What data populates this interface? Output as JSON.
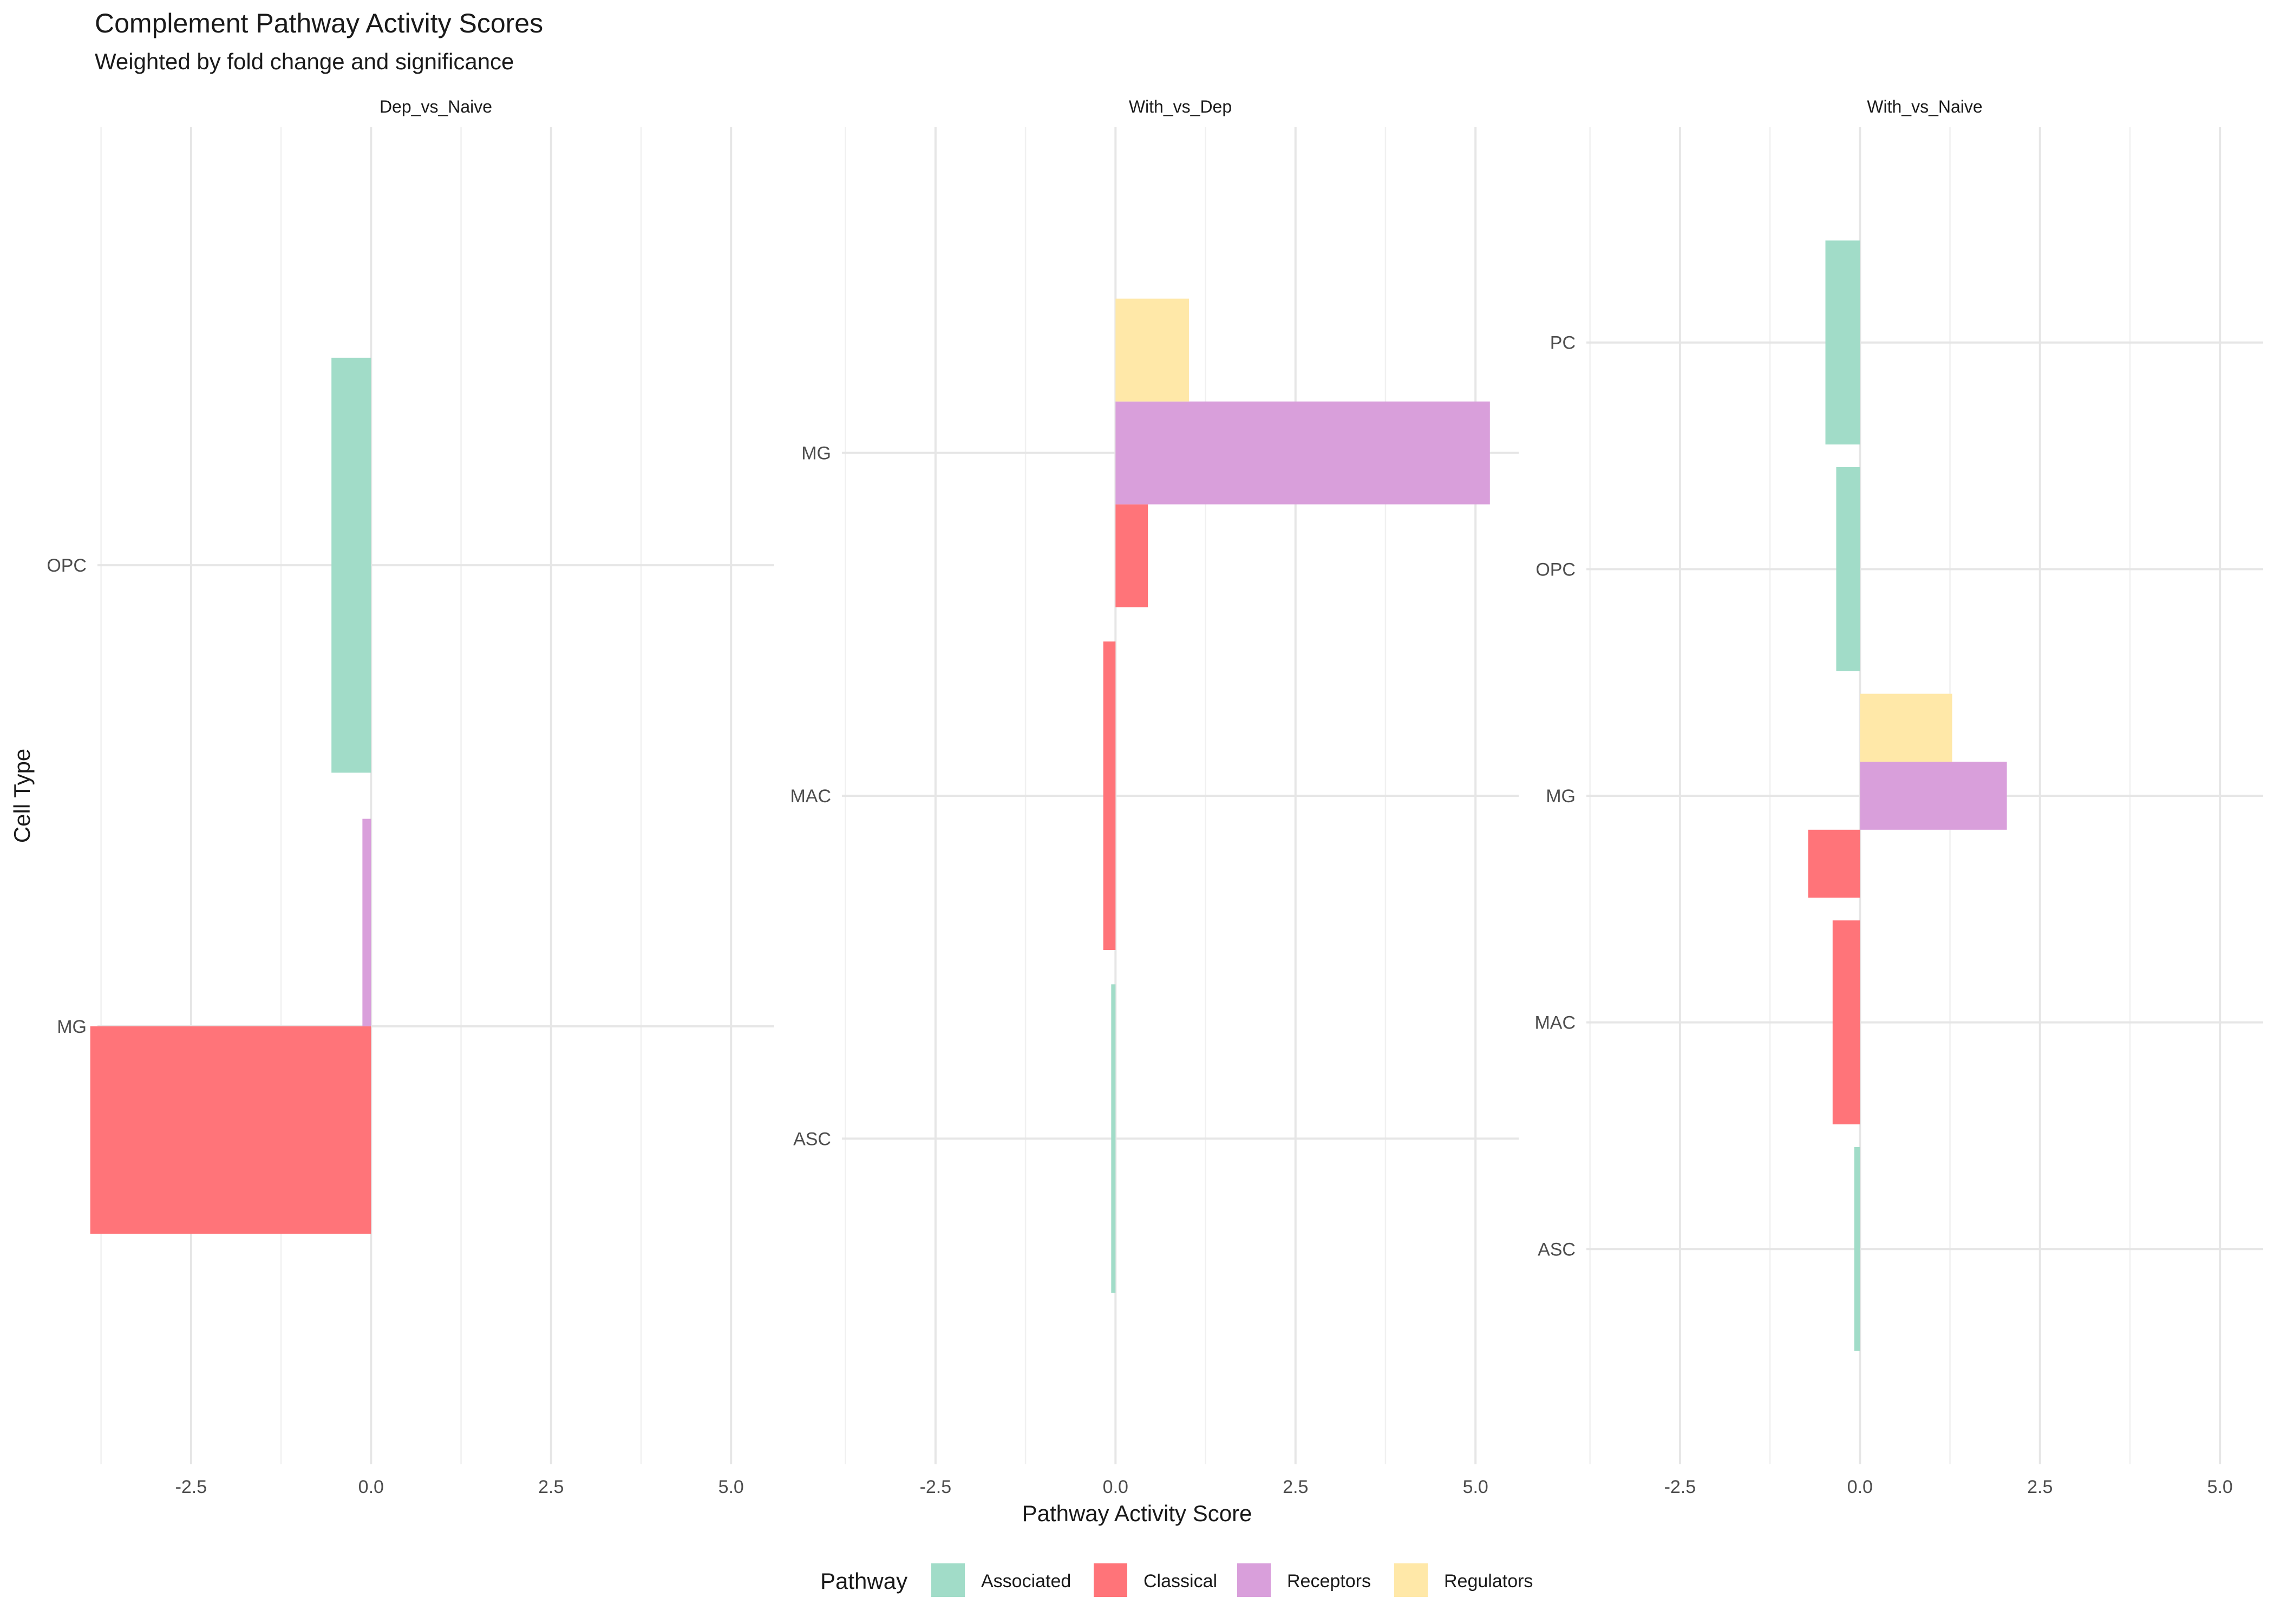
{
  "chart_data": {
    "type": "bar",
    "orientation": "horizontal",
    "title": "Complement Pathway Activity Scores",
    "subtitle": "Weighted by fold change and significance",
    "xlabel": "Pathway Activity Score",
    "ylabel": "Cell Type",
    "xlim": [
      -3.8,
      5.6
    ],
    "x_ticks": [
      -2.5,
      0,
      2.5,
      5
    ],
    "x_tick_labels": [
      "-2.5",
      "0.0",
      "2.5",
      "5.0"
    ],
    "grid": true,
    "legend": {
      "title": "Pathway",
      "placement": "bottom",
      "entries": [
        "Associated",
        "Classical",
        "Receptors",
        "Regulators"
      ]
    },
    "colors": {
      "Associated": "#a1dcc8",
      "Classical": "#ff7479",
      "Receptors": "#d99fdb",
      "Regulators": "#ffe8a8"
    },
    "panels": [
      {
        "name": "Dep_vs_Naive",
        "categories": [
          "MG",
          "OPC"
        ],
        "bars": [
          {
            "category": "MG",
            "pathway": "Classical",
            "value": -3.9
          },
          {
            "category": "MG",
            "pathway": "Receptors",
            "value": -0.12
          },
          {
            "category": "OPC",
            "pathway": "Associated",
            "value": -0.55
          }
        ]
      },
      {
        "name": "With_vs_Dep",
        "categories": [
          "ASC",
          "MAC",
          "MG"
        ],
        "bars": [
          {
            "category": "ASC",
            "pathway": "Associated",
            "value": -0.06
          },
          {
            "category": "MAC",
            "pathway": "Classical",
            "value": -0.17
          },
          {
            "category": "MG",
            "pathway": "Classical",
            "value": 0.45
          },
          {
            "category": "MG",
            "pathway": "Receptors",
            "value": 5.2
          },
          {
            "category": "MG",
            "pathway": "Regulators",
            "value": 1.02
          }
        ]
      },
      {
        "name": "With_vs_Naive",
        "categories": [
          "ASC",
          "MAC",
          "MG",
          "OPC",
          "PC"
        ],
        "bars": [
          {
            "category": "ASC",
            "pathway": "Associated",
            "value": -0.08
          },
          {
            "category": "MAC",
            "pathway": "Classical",
            "value": -0.38
          },
          {
            "category": "MG",
            "pathway": "Classical",
            "value": -0.72
          },
          {
            "category": "MG",
            "pathway": "Receptors",
            "value": 2.04
          },
          {
            "category": "MG",
            "pathway": "Regulators",
            "value": 1.28
          },
          {
            "category": "OPC",
            "pathway": "Associated",
            "value": -0.33
          },
          {
            "category": "PC",
            "pathway": "Associated",
            "value": -0.48
          }
        ]
      }
    ]
  }
}
